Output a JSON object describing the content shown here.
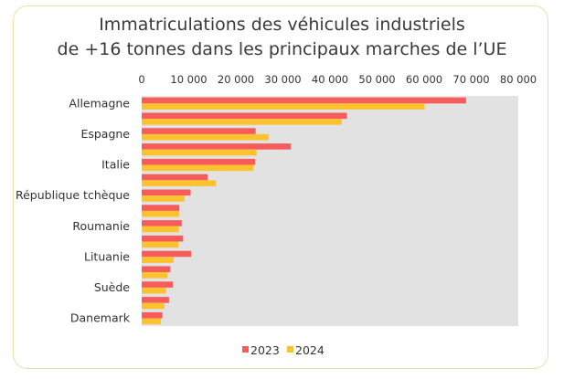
{
  "chart_data": {
    "type": "bar",
    "orientation": "horizontal",
    "title": [
      "Immatriculations des véhicules industriels",
      "de +16 tonnes dans les principaux marches de l’UE"
    ],
    "categories": [
      "Allemagne",
      "",
      "Espagne",
      "",
      "Italie",
      "",
      "République tchèque",
      "",
      "Roumanie",
      "",
      "Lituanie",
      "",
      "Suède",
      "",
      "Danemark"
    ],
    "series": [
      {
        "name": "2023",
        "color": "#f75c5c",
        "values": [
          68900,
          43600,
          24200,
          31700,
          24100,
          14000,
          10400,
          8000,
          8500,
          8800,
          10500,
          6100,
          6600,
          5800,
          4400
        ]
      },
      {
        "name": "2024",
        "color": "#fdc32e",
        "values": [
          60100,
          42500,
          27000,
          24400,
          23700,
          15800,
          9100,
          8000,
          7900,
          7800,
          6800,
          5500,
          5200,
          4800,
          4100
        ]
      }
    ],
    "xlim": [
      0,
      80000
    ],
    "xticks": [
      "0",
      "10 000",
      "20 000",
      "30 000",
      "40 000",
      "50 000",
      "60 000",
      "70 000",
      "80 000"
    ],
    "xaxis_position": "top",
    "plot_background": "#e2e2e2",
    "grid": false,
    "legend": "bottom"
  }
}
